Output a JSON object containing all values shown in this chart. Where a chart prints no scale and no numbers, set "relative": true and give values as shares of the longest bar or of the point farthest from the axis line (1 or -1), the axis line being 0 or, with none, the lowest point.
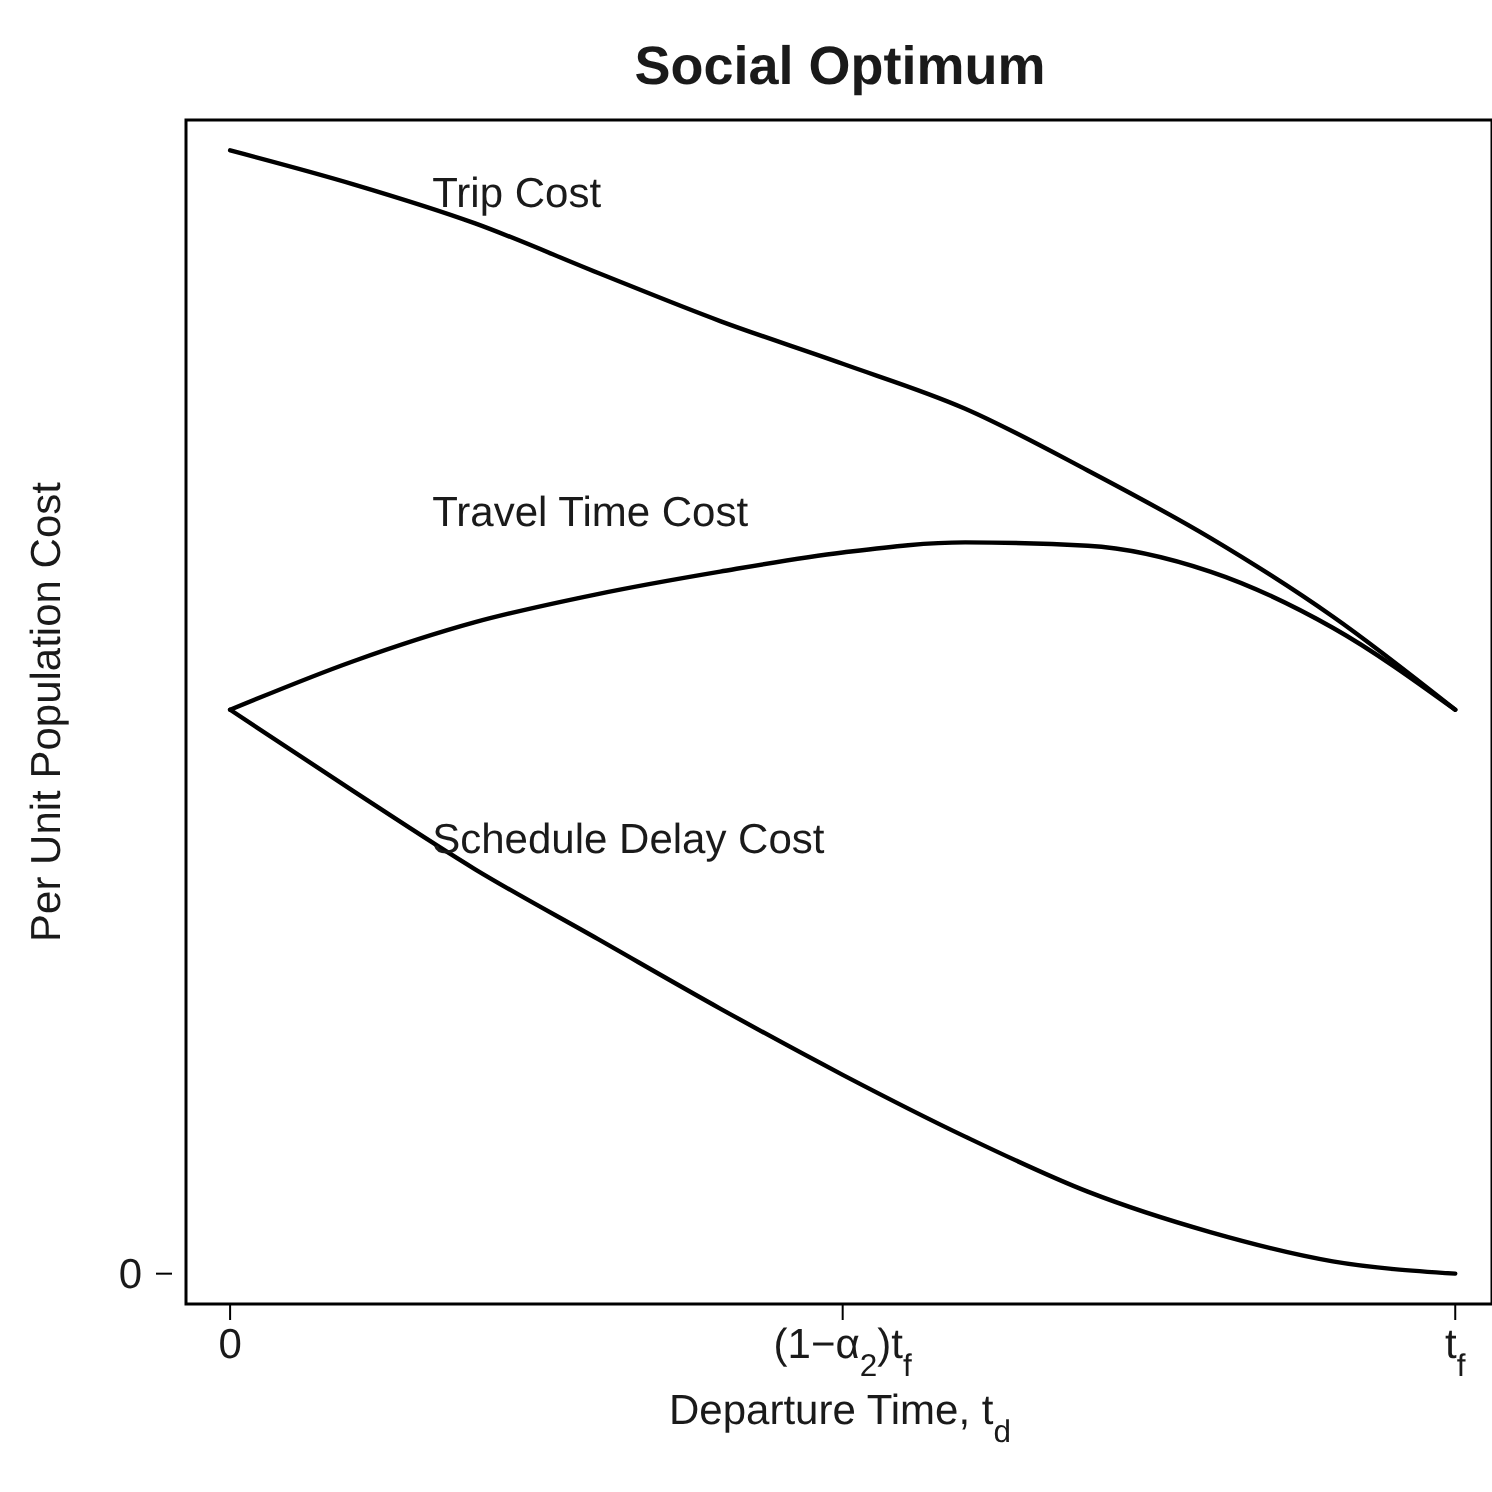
{
  "chart_data": {
    "type": "line",
    "title": "Social Optimum",
    "xlabel": "Departure Time, t$_{d}$",
    "ylabel": "Per Unit Population Cost",
    "relative": true,
    "categories": [
      "0",
      null,
      null,
      null,
      null,
      "(1−α$_{2}$)t$_{f}$",
      null,
      null,
      null,
      null,
      "t$_{f}$"
    ],
    "annotations": [
      "0"
    ],
    "series": [
      {
        "name": "Trip Cost",
        "color": "#000000",
        "values": [
          1.0,
          0.97,
          0.935,
          0.891,
          0.848,
          0.81,
          0.77,
          0.715,
          0.655,
          0.585,
          0.502
        ]
      },
      {
        "name": "Travel Time Cost",
        "color": "#000000",
        "values": [
          0.502,
          0.545,
          0.58,
          0.605,
          0.625,
          0.642,
          0.651,
          0.648,
          0.625,
          0.575,
          0.502
        ]
      },
      {
        "name": "Schedule Delay Cost",
        "color": "#000000",
        "values": [
          0.502,
          0.43,
          0.36,
          0.298,
          0.236,
          0.177,
          0.122,
          0.073,
          0.037,
          0.011,
          0
        ]
      }
    ],
    "legend": false,
    "grid": false,
    "marker": "none",
    "line_style": "solid"
  }
}
